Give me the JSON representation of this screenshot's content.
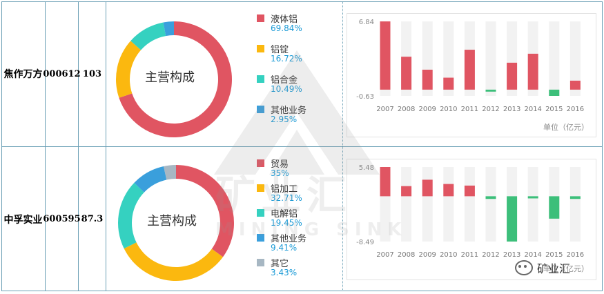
{
  "rows": [
    {
      "name": "焦作万方",
      "code": "000612",
      "value": "103",
      "donut_center": "主营构成",
      "composition": [
        {
          "name": "液体铝",
          "pct": "69.84%",
          "value": 69.84,
          "color": "#e05562"
        },
        {
          "name": "铝锭",
          "pct": "16.72%",
          "value": 16.72,
          "color": "#fbb80f"
        },
        {
          "name": "铝合金",
          "pct": "10.49%",
          "value": 10.49,
          "color": "#35d1c0"
        },
        {
          "name": "其他业务",
          "pct": "2.95%",
          "value": 2.95,
          "color": "#3a9fdc"
        }
      ]
    },
    {
      "name": "中孚实业",
      "code": "600595",
      "value": "87.3",
      "donut_center": "主营构成",
      "composition": [
        {
          "name": "贸易",
          "pct": "35%",
          "value": 35,
          "color": "#e05562"
        },
        {
          "name": "铝加工",
          "pct": "32.71%",
          "value": 32.71,
          "color": "#fbb80f"
        },
        {
          "name": "电解铝",
          "pct": "19.45%",
          "value": 19.45,
          "color": "#35d1c0"
        },
        {
          "name": "其他业务",
          "pct": "9.41%",
          "value": 9.41,
          "color": "#3a9fdc"
        },
        {
          "name": "其它",
          "pct": "3.43%",
          "value": 3.43,
          "color": "#a7b7c3"
        }
      ]
    }
  ],
  "chart_data": [
    {
      "type": "pie",
      "title": "主营构成",
      "categories": [
        "液体铝",
        "铝锭",
        "铝合金",
        "其他业务"
      ],
      "values": [
        69.84,
        16.72,
        10.49,
        2.95
      ]
    },
    {
      "type": "bar",
      "categories": [
        "2007",
        "2008",
        "2009",
        "2010",
        "2011",
        "2012",
        "2013",
        "2014",
        "2015",
        "2016"
      ],
      "values": [
        6.84,
        3.3,
        2.0,
        1.2,
        4.0,
        -0.2,
        2.7,
        3.6,
        -0.63,
        0.9
      ],
      "ylim": [
        -0.63,
        6.84
      ],
      "ytick_labels": [
        "6.84",
        "-0.63"
      ],
      "unit_label": "单位（亿元）"
    },
    {
      "type": "pie",
      "title": "主营构成",
      "categories": [
        "贸易",
        "铝加工",
        "电解铝",
        "其他业务",
        "其它"
      ],
      "values": [
        35,
        32.71,
        19.45,
        9.41,
        3.43
      ]
    },
    {
      "type": "bar",
      "categories": [
        "2007",
        "2008",
        "2009",
        "2010",
        "2011",
        "2012",
        "2013",
        "2014",
        "2015",
        "2016"
      ],
      "values": [
        5.48,
        1.9,
        3.1,
        2.3,
        2.0,
        -0.5,
        -8.49,
        -0.4,
        -4.2,
        -0.5
      ],
      "ylim": [
        -8.49,
        5.48
      ],
      "ytick_labels": [
        "5.48",
        "-8.49"
      ],
      "unit_label": "单位（亿元）"
    }
  ],
  "colors": {
    "positive": "#e05562",
    "negative": "#3cbf7a",
    "track": "#f2f2f2",
    "grid_line": "#6a9fb5"
  },
  "watermark": {
    "text_cn": "矿业汇",
    "text_en": "MINING SINK"
  },
  "brand": {
    "label": "矿业汇",
    "icon": "wechat-icon"
  }
}
